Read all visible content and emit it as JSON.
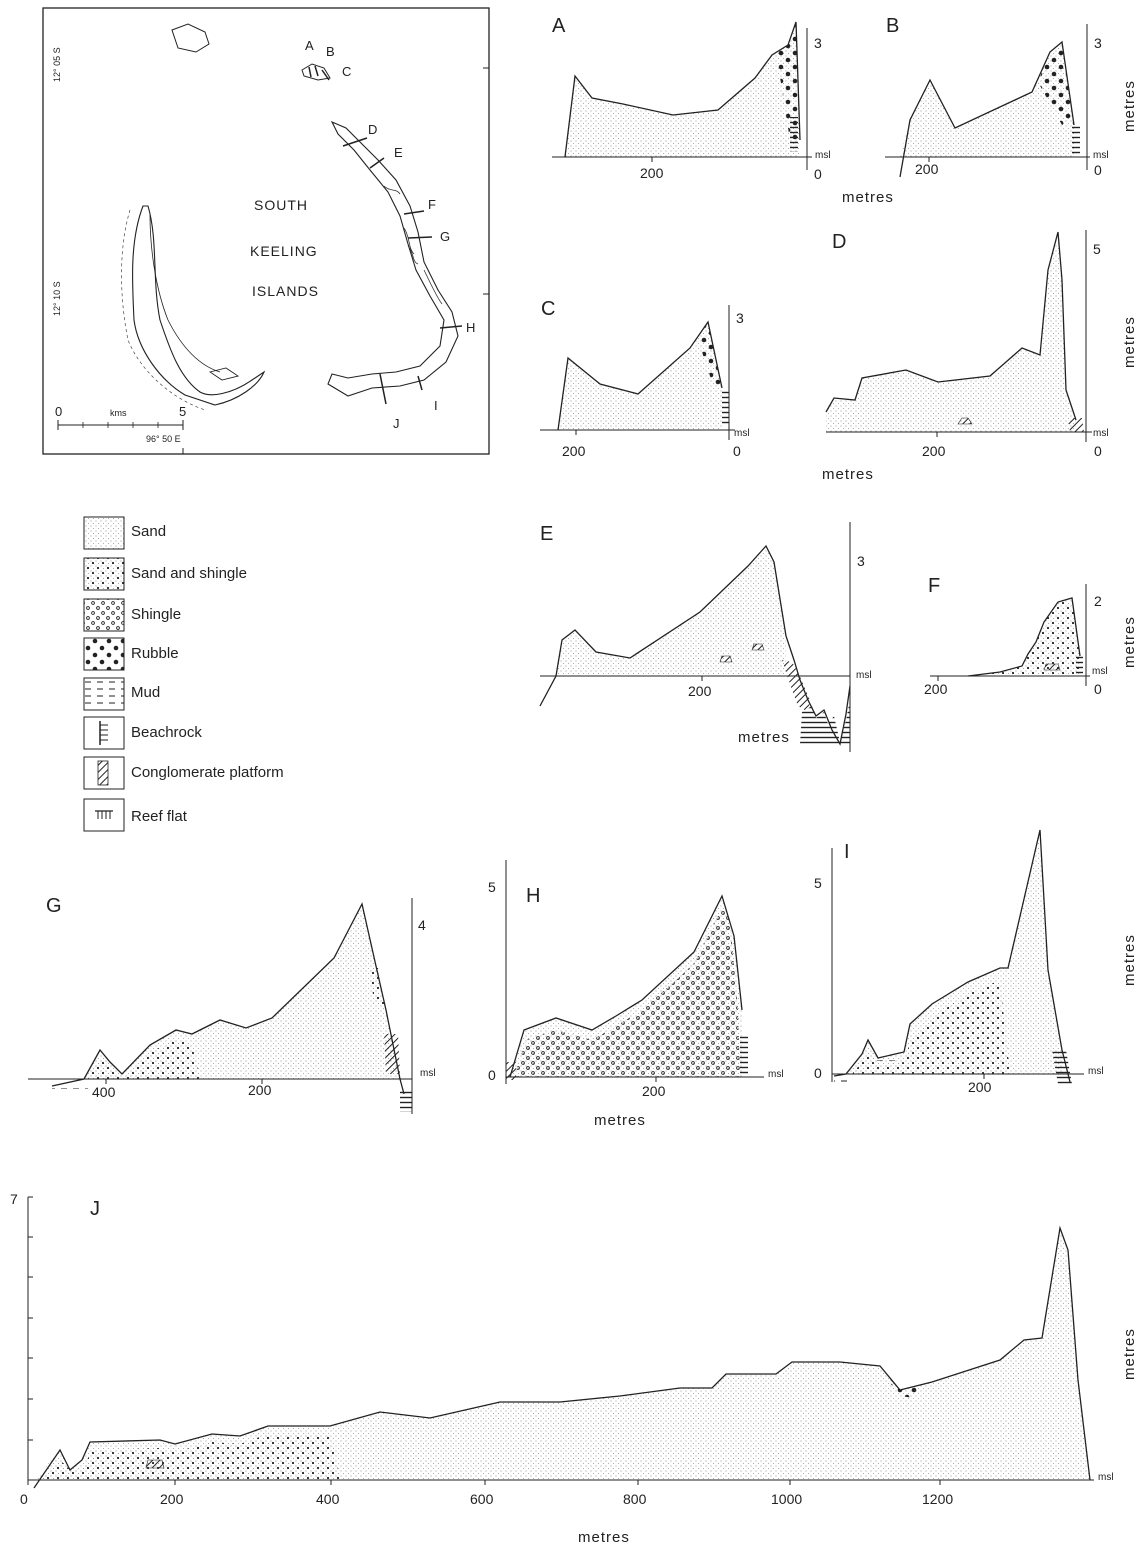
{
  "map": {
    "region_label_1": "SOUTH",
    "region_label_2": "KEELING",
    "region_label_3": "ISLANDS",
    "lat_top": "12° 05 S",
    "lat_mid": "12° 10 S",
    "lon": "96° 50 E",
    "scale_start": "0",
    "scale_end": "5",
    "scale_unit": "kms",
    "transect_labels": [
      "A",
      "B",
      "C",
      "D",
      "E",
      "F",
      "G",
      "H",
      "I",
      "J"
    ]
  },
  "legend": {
    "items": [
      {
        "label": "Sand",
        "pattern": "sand"
      },
      {
        "label": "Sand and shingle",
        "pattern": "sand-shingle"
      },
      {
        "label": "Shingle",
        "pattern": "shingle"
      },
      {
        "label": "Rubble",
        "pattern": "rubble"
      },
      {
        "label": "Mud",
        "pattern": "mud"
      },
      {
        "label": "Beachrock",
        "pattern": "beachrock"
      },
      {
        "label": "Conglomerate platform",
        "pattern": "conglomerate"
      },
      {
        "label": "Reef flat",
        "pattern": "reef-flat"
      }
    ]
  },
  "profiles": {
    "A": {
      "label": "A",
      "y_tick": "3",
      "msl": "msl",
      "zero": "0",
      "x_tick": "200",
      "x_label": "metres"
    },
    "B": {
      "label": "B",
      "y_tick": "3",
      "msl": "msl",
      "zero": "0",
      "x_tick": "200",
      "y_label": "metres"
    },
    "C": {
      "label": "C",
      "y_tick": "3",
      "msl": "msl",
      "zero": "0",
      "x_tick": "200"
    },
    "D": {
      "label": "D",
      "y_tick": "5",
      "msl": "msl",
      "zero": "0",
      "x_tick": "200",
      "x_label": "metres",
      "y_label": "metres"
    },
    "E": {
      "label": "E",
      "y_tick": "3",
      "msl": "msl",
      "x_tick": "200",
      "x_label": "metres"
    },
    "F": {
      "label": "F",
      "y_tick": "2",
      "msl": "msl",
      "zero": "0",
      "x_tick": "200",
      "y_label": "metres"
    },
    "G": {
      "label": "G",
      "y_tick": "4",
      "msl": "msl",
      "x_tick_1": "400",
      "x_tick_2": "200"
    },
    "H": {
      "label": "H",
      "y_tick_top": "5",
      "y_tick_bottom": "0",
      "msl": "msl",
      "x_tick": "200",
      "x_label": "metres"
    },
    "I": {
      "label": "I",
      "y_tick_top": "5",
      "y_tick_bottom": "0",
      "msl": "msl",
      "x_tick": "200",
      "y_label": "metres"
    },
    "J": {
      "label": "J",
      "y_tick": "7",
      "msl": "msl",
      "x_ticks": [
        "0",
        "200",
        "400",
        "600",
        "800",
        "1000",
        "1200"
      ],
      "x_label": "metres",
      "y_label": "metres"
    }
  },
  "colors": {
    "ink": "#222222",
    "sand": "#bdbdbd"
  }
}
